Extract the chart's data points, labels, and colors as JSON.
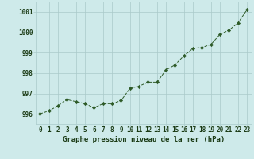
{
  "x": [
    0,
    1,
    2,
    3,
    4,
    5,
    6,
    7,
    8,
    9,
    10,
    11,
    12,
    13,
    14,
    15,
    16,
    17,
    18,
    19,
    20,
    21,
    22,
    23
  ],
  "y": [
    996.0,
    996.15,
    996.4,
    996.7,
    996.6,
    996.5,
    996.3,
    996.5,
    996.5,
    996.65,
    997.25,
    997.35,
    997.55,
    997.55,
    998.15,
    998.4,
    998.85,
    999.2,
    999.25,
    999.4,
    999.9,
    1000.1,
    1000.45,
    1001.1
  ],
  "line_color": "#2d5a27",
  "marker": "D",
  "marker_size": 2.2,
  "bg_color": "#ceeaea",
  "grid_color": "#aacaca",
  "xlabel": "Graphe pression niveau de la mer (hPa)",
  "ylim": [
    995.5,
    1001.5
  ],
  "xlim": [
    -0.5,
    23.5
  ],
  "yticks": [
    996,
    997,
    998,
    999,
    1000,
    1001
  ],
  "xticks": [
    0,
    1,
    2,
    3,
    4,
    5,
    6,
    7,
    8,
    9,
    10,
    11,
    12,
    13,
    14,
    15,
    16,
    17,
    18,
    19,
    20,
    21,
    22,
    23
  ],
  "tick_fontsize": 5.5,
  "xlabel_fontsize": 6.5,
  "label_color": "#1a3a14"
}
